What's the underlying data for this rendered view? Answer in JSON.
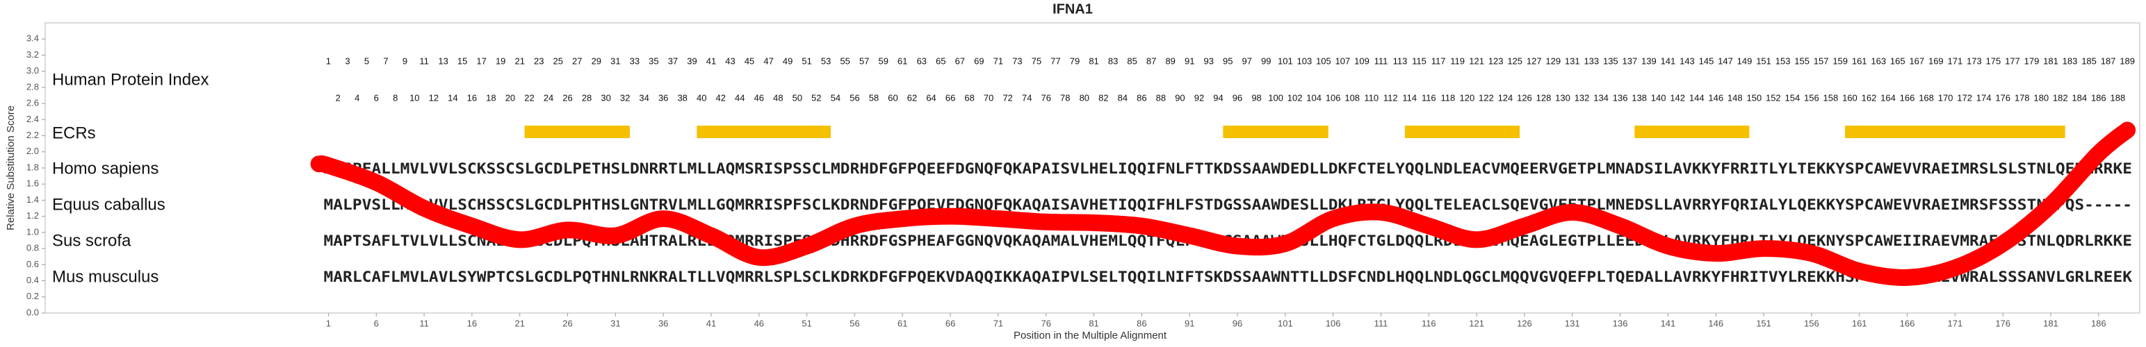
{
  "chart_data": {
    "type": "alignment",
    "title": "IFNA1",
    "xlabel": "Position in the Multiple Alignment",
    "ylabel": "Relative Substitution Score",
    "xlim": [
      -28.6,
      190.3
    ],
    "ylim": [
      0,
      3.6
    ],
    "xticks": [
      1,
      6,
      11,
      16,
      21,
      26,
      31,
      36,
      41,
      46,
      51,
      56,
      61,
      66,
      71,
      76,
      81,
      86,
      91,
      96,
      101,
      106,
      111,
      116,
      121,
      126,
      131,
      136,
      141,
      146,
      151,
      156,
      161,
      166,
      171,
      176,
      181,
      186
    ],
    "yticks": [
      {
        "value": 0,
        "label": "0.0"
      },
      0.2,
      0.4,
      0.6,
      0.8,
      {
        "value": 1,
        "label": "1.0"
      },
      1.2,
      1.4,
      1.6,
      1.8,
      {
        "value": 2,
        "label": "2.0"
      },
      2.2,
      2.4,
      2.6,
      2.8,
      {
        "value": 3,
        "label": "3.0"
      },
      3.2,
      3.4
    ],
    "index_label": "Human Protein Index",
    "protein_index": [
      1,
      2,
      3,
      4,
      5,
      6,
      7,
      8,
      9,
      10,
      11,
      12,
      13,
      14,
      15,
      16,
      17,
      18,
      19,
      20,
      21,
      22,
      23,
      24,
      25,
      26,
      27,
      28,
      29,
      30,
      31,
      32,
      33,
      34,
      35,
      36,
      37,
      38,
      39,
      40,
      41,
      42,
      43,
      44,
      45,
      46,
      47,
      48,
      49,
      50,
      51,
      52,
      53,
      54,
      55,
      56,
      57,
      58,
      59,
      60,
      61,
      62,
      63,
      64,
      65,
      66,
      67,
      68,
      69,
      70,
      71,
      72,
      73,
      74,
      75,
      76,
      77,
      78,
      79,
      80,
      81,
      82,
      83,
      84,
      85,
      86,
      87,
      88,
      89,
      90,
      91,
      92,
      93,
      94,
      95,
      96,
      97,
      98,
      99,
      100,
      101,
      102,
      103,
      104,
      105,
      106,
      107,
      108,
      109,
      110,
      111,
      112,
      113,
      114,
      115,
      116,
      117,
      118,
      119,
      120,
      121,
      122,
      123,
      124,
      125,
      126,
      127,
      128,
      129,
      130,
      131,
      132,
      133,
      134,
      135,
      136,
      137,
      138,
      139,
      140,
      141,
      142,
      143,
      144,
      145,
      146,
      147,
      148,
      149,
      150,
      151,
      152,
      153,
      154,
      155,
      156,
      157,
      158,
      159,
      160,
      161,
      162,
      163,
      164,
      165,
      166,
      167,
      168,
      169,
      170,
      171,
      172,
      173,
      174,
      175,
      176,
      177,
      178,
      179,
      180,
      181,
      182,
      183,
      184,
      185,
      186,
      187,
      188,
      189
    ],
    "ecr_label": "ECRs",
    "ecr_color": "#f5c000",
    "ecrs": [
      [
        22,
        32
      ],
      [
        40,
        53
      ],
      [
        95,
        105
      ],
      [
        114,
        125
      ],
      [
        138,
        149
      ],
      [
        160,
        182
      ]
    ],
    "residue_color": "#1c2d8c",
    "sequences": [
      {
        "name": "Homo sapiens",
        "residues": "MASPFALLMVLVVLSCKSSCSLGCDLPETHSLDNRRTLMLLAQMSRISPSSCLMDRHDFGFPQEEFDGNQFQKAPAISVLHELIQQIFNLFTTKDSSAAWDEDLLDKFCTELYQQLNDLEACVMQEERVGETPLMNADSILAVKKYFRRITLYLTEKKYSPCAWEVVRAEIMRSLSLSTNLQERLRRKE"
      },
      {
        "name": "Equus caballus",
        "residues": "MALPVSLLMALVVLSCHSSCSLGCDLPHTHSLGNTRVLMLLGQMRRISPFSCLKDRNDFGFPQEVFDGNQFQKAQAISAVHETIQQIFHLFSTDGSSAAWDESLLDKLRTGLYQQLTELEACLSQEVGVEETPLMNEDSLLAVRRYFQRIALYLQEKKYSPCAWEVVRAEIMRSFSSSTNLPQS-----"
      },
      {
        "name": "Sus scrofa",
        "residues": "MAPTSAFLTVLVLLSCNAICSLGCDLPQTHSLAHTRALRLLAQMRRISPFSCLDHRRDFGSPHEAFGGNQVQKAQAMALVHEMLQQTFQLFSTEGSAAAWDESLLHQFCTGLDQQLRDLEACVMQEAGLEGTPLLEEDSILAVRKYFHRLTLYLQEKNYSPCAWEIIRAEVMRAFSSSTNLQDRLRKKE"
      },
      {
        "name": "Mus musculus",
        "residues": "MARLCAFLMVLAVLSYWPTCSLGCDLPQTHNLRNKRALTLLVQMRRLSPLSCLKDRKDFGFPQEKVDAQQIKKAQAIPVLSELTQQILNIFTSKDSSAAWNTTLLDSFCNDLHQQLNDLQGCLMQQVGVQEFPLTQEDALLAVRKYFHRITVYLREKKHSPCAWEVVRAEVWRALSSSANVLGRLREEK"
      }
    ],
    "line_color": "#ff0000",
    "x": [
      0,
      1,
      6,
      11,
      16,
      21,
      26,
      31,
      36,
      41,
      46,
      51,
      56,
      61,
      66,
      71,
      76,
      81,
      86,
      91,
      96,
      101,
      106,
      111,
      116,
      121,
      126,
      131,
      136,
      141,
      146,
      151,
      156,
      161,
      166,
      171,
      176,
      181,
      186,
      189
    ],
    "values": [
      1.85,
      1.83,
      1.62,
      1.3,
      1.08,
      0.91,
      1.03,
      0.96,
      1.17,
      0.96,
      0.69,
      0.83,
      1.08,
      1.17,
      1.2,
      1.17,
      1.13,
      1.12,
      1.08,
      0.96,
      0.83,
      0.86,
      1.17,
      1.25,
      1.08,
      0.91,
      1.08,
      1.25,
      1.08,
      0.83,
      0.74,
      0.8,
      0.74,
      0.52,
      0.44,
      0.56,
      0.86,
      1.34,
      1.98,
      2.27
    ]
  }
}
